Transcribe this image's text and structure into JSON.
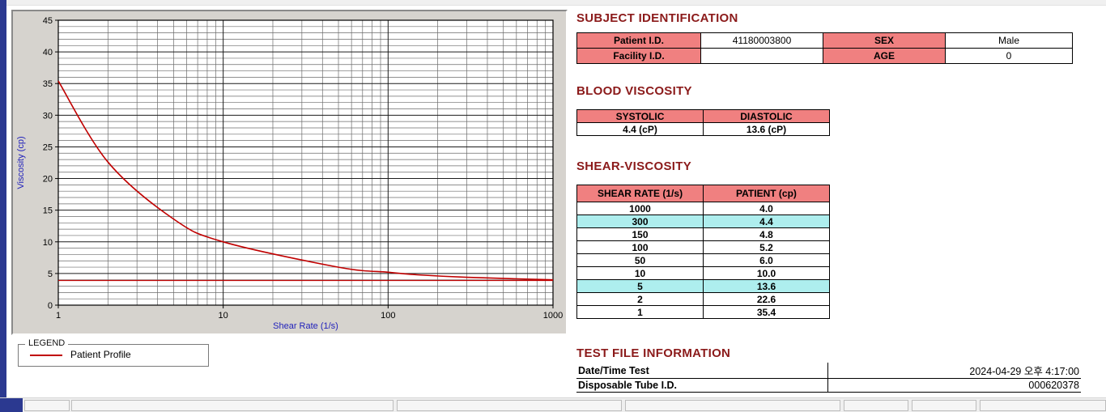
{
  "colors": {
    "accent_blue": "#2b3990",
    "section_title": "#8b1a1a",
    "table_header_bg": "#f08080",
    "highlight_bg": "#aeeeee",
    "curve_red": "#c00000",
    "axis_label_blue": "#2222bb"
  },
  "legend": {
    "title": "LEGEND",
    "entries": [
      {
        "label": "Patient Profile",
        "color": "#c00000"
      }
    ]
  },
  "sections": {
    "subject": {
      "title": "SUBJECT IDENTIFICATION",
      "patient_id_label": "Patient I.D.",
      "patient_id": "41180003800",
      "sex_label": "SEX",
      "sex": "Male",
      "facility_id_label": "Facility I.D.",
      "facility_id": "",
      "age_label": "AGE",
      "age": "0"
    },
    "blood_viscosity": {
      "title": "BLOOD VISCOSITY",
      "systolic_label": "SYSTOLIC",
      "diastolic_label": "DIASTOLIC",
      "systolic_value": "4.4 (cP)",
      "diastolic_value": "13.6 (cP)"
    },
    "shear_viscosity": {
      "title": "SHEAR-VISCOSITY",
      "col1": "SHEAR RATE (1/s)",
      "col2": "PATIENT (cp)",
      "rows": [
        {
          "rate": "1000",
          "value": "4.0",
          "highlight": false
        },
        {
          "rate": "300",
          "value": "4.4",
          "highlight": true
        },
        {
          "rate": "150",
          "value": "4.8",
          "highlight": false
        },
        {
          "rate": "100",
          "value": "5.2",
          "highlight": false
        },
        {
          "rate": "50",
          "value": "6.0",
          "highlight": false
        },
        {
          "rate": "10",
          "value": "10.0",
          "highlight": false
        },
        {
          "rate": "5",
          "value": "13.6",
          "highlight": true
        },
        {
          "rate": "2",
          "value": "22.6",
          "highlight": false
        },
        {
          "rate": "1",
          "value": "35.4",
          "highlight": false
        }
      ]
    },
    "test_file": {
      "title": "TEST FILE INFORMATION",
      "date_label": "Date/Time Test",
      "date_value": "2024-04-29  오후 4:17:00",
      "tube_label": "Disposable Tube I.D.",
      "tube_value": "000620378"
    }
  },
  "chart_data": {
    "type": "line",
    "title": "",
    "xlabel": "Shear Rate (1/s)",
    "ylabel": "Viscosity (cp)",
    "x_scale": "log",
    "xlim": [
      1,
      1000
    ],
    "ylim": [
      0,
      45
    ],
    "x_ticks": [
      1,
      10,
      100,
      1000
    ],
    "y_ticks": [
      0,
      5,
      10,
      15,
      20,
      25,
      30,
      35,
      40,
      45
    ],
    "y_minor_step": 1,
    "grid": true,
    "legend_position": "below-left",
    "series": [
      {
        "name": "Patient Profile",
        "color": "#c00000",
        "x": [
          1,
          2,
          5,
          10,
          50,
          100,
          150,
          300,
          1000
        ],
        "y": [
          35.4,
          22.6,
          13.6,
          10.0,
          6.0,
          5.2,
          4.8,
          4.4,
          4.0
        ]
      }
    ],
    "reference_line": {
      "y": 3.9,
      "color": "#c00000"
    }
  }
}
